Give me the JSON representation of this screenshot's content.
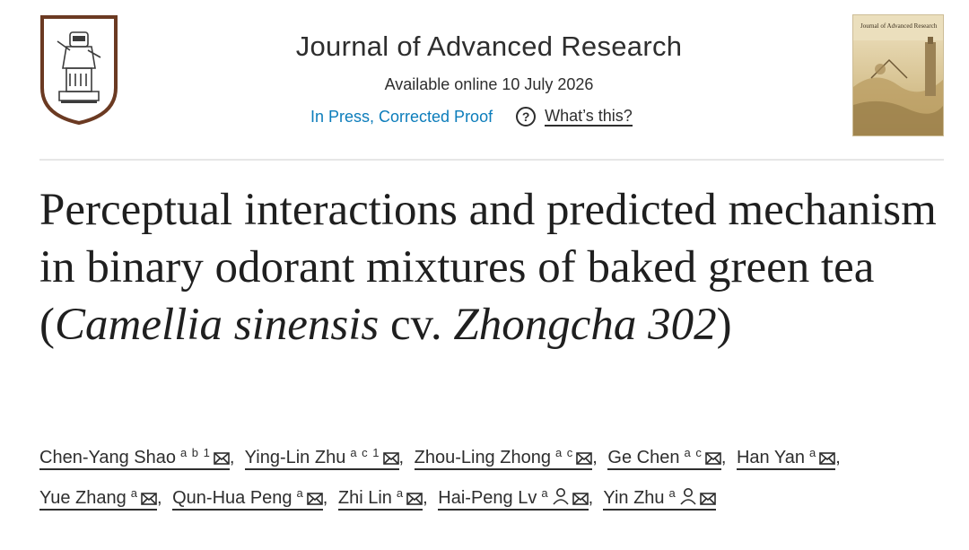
{
  "header": {
    "journal_title": "Journal of Advanced Research",
    "available_online": "Available online 10 July 2026",
    "status": "In Press, Corrected Proof",
    "help_label": "What’s this?",
    "help_glyph": "?"
  },
  "cover": {
    "title": "Journal of Advanced Research"
  },
  "article": {
    "title_part1": "Perceptual interactions and predicted mechanism in binary odorant mixtures of baked green tea (",
    "title_italic1": "Camellia sinensis",
    "title_part2": " cv. ",
    "title_italic2": "Zhongcha 302",
    "title_part3": ")"
  },
  "authors": [
    {
      "name": "Chen-Yang Shao",
      "sup": "a b 1",
      "sep": ","
    },
    {
      "name": "Ying-Lin Zhu",
      "sup": "a c 1",
      "sep": ","
    },
    {
      "name": "Zhou-Ling Zhong",
      "sup": "a c",
      "sep": ","
    },
    {
      "name": "Ge Chen",
      "sup": "a c",
      "sep": ","
    },
    {
      "name": "Han Yan",
      "sup": "a",
      "sep": ","
    },
    {
      "name": "Yue Zhang",
      "sup": "a",
      "sep": ","
    },
    {
      "name": "Qun-Hua Peng",
      "sup": "a",
      "sep": ","
    },
    {
      "name": "Zhi Lin",
      "sup": "a",
      "sep": ","
    },
    {
      "name": "Hai-Peng Lv",
      "sup": "a",
      "sep": ",",
      "corresponding": true
    },
    {
      "name": "Yin Zhu",
      "sup": "a",
      "sep": "",
      "corresponding": true
    }
  ],
  "colors": {
    "link_blue": "#0c7dbb",
    "logo_brown": "#6b3a22",
    "text_dark": "#2e2e2e"
  }
}
